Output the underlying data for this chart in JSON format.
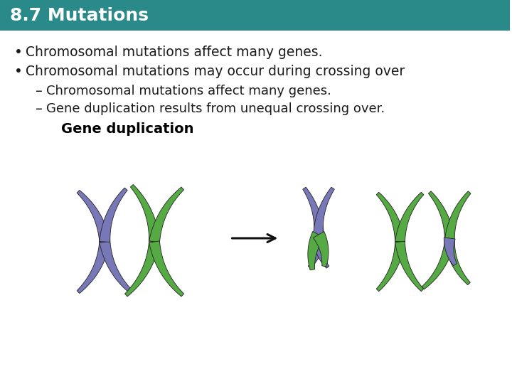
{
  "title": "8.7 Mutations",
  "title_bg_color": "#2a8a8a",
  "title_text_color": "#ffffff",
  "slide_bg_color": "#ffffff",
  "bullet1": "Chromosomal mutations affect many genes.",
  "bullet2": "Chromosomal mutations may occur during crossing over",
  "sub1": "Chromosomal mutations affect many genes.",
  "sub2": "Gene duplication results from unequal crossing over.",
  "diagram_label": "Gene duplication",
  "bullet_color": "#1a1a1a",
  "diagram_label_color": "#000000",
  "chromosome_purple": "#7878b8",
  "chromosome_green": "#55aa44",
  "chromosome_outline": "#222222",
  "arrow_color": "#111111",
  "title_font_size": 18,
  "bullet_font_size": 13.5,
  "sub_font_size": 13,
  "diagram_label_font_size": 14
}
